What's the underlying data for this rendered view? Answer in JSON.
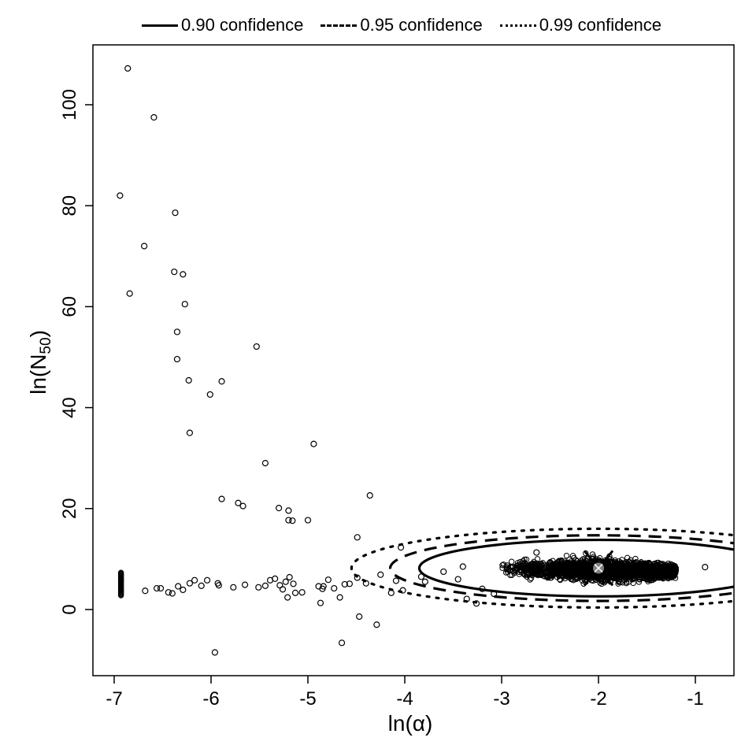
{
  "chart_data": {
    "type": "scatter",
    "title": "",
    "xlabel": "ln(α)",
    "ylabel": "ln(N50)",
    "ylabel_parts": {
      "prefix": "ln(N",
      "subscript": "50",
      "suffix": ")"
    },
    "xlim": [
      -7.2,
      -0.6
    ],
    "ylim": [
      -13,
      111
    ],
    "x_ticks": [
      -7,
      -6,
      -5,
      -4,
      -3,
      -2,
      -1
    ],
    "y_ticks": [
      0,
      20,
      40,
      60,
      80,
      100
    ],
    "grid": false,
    "legend_position": "top-outside",
    "legend": [
      {
        "label": "0.90 confidence",
        "style": "solid"
      },
      {
        "label": "0.95 confidence",
        "style": "dashed"
      },
      {
        "label": "0.99 confidence",
        "style": "dotted"
      }
    ],
    "point_estimate": {
      "x": -2.0,
      "y": 8.2,
      "marker": "circled-x",
      "color": "#808080"
    },
    "confidence_ellipses": [
      {
        "level": 0.9,
        "cx": -2.0,
        "cy": 8.2,
        "rx": 1.85,
        "ry": 5.6,
        "style": "solid"
      },
      {
        "level": 0.95,
        "cx": -2.0,
        "cy": 8.2,
        "rx": 2.15,
        "ry": 6.5,
        "style": "dashed"
      },
      {
        "level": 0.99,
        "cx": -2.0,
        "cy": 8.2,
        "rx": 2.55,
        "ry": 7.8,
        "style": "dotted"
      }
    ],
    "dense_cluster": {
      "x_range": [
        -3.0,
        -1.2
      ],
      "y_center": 7.8,
      "y_spread": 1.5,
      "note": "thousands of overlapping bootstrap points"
    },
    "points": [
      {
        "x": -6.86,
        "y": 107.2
      },
      {
        "x": -6.59,
        "y": 97.5
      },
      {
        "x": -6.94,
        "y": 82.0
      },
      {
        "x": -6.37,
        "y": 78.6
      },
      {
        "x": -6.69,
        "y": 72.0
      },
      {
        "x": -6.84,
        "y": 62.6
      },
      {
        "x": -6.38,
        "y": 66.9
      },
      {
        "x": -6.29,
        "y": 66.4
      },
      {
        "x": -6.27,
        "y": 60.5
      },
      {
        "x": -6.35,
        "y": 55.0
      },
      {
        "x": -6.35,
        "y": 49.6
      },
      {
        "x": -6.23,
        "y": 45.4
      },
      {
        "x": -6.01,
        "y": 42.6
      },
      {
        "x": -5.89,
        "y": 45.2
      },
      {
        "x": -5.53,
        "y": 52.1
      },
      {
        "x": -6.22,
        "y": 35.0
      },
      {
        "x": -5.44,
        "y": 29.0
      },
      {
        "x": -4.94,
        "y": 32.8
      },
      {
        "x": -5.89,
        "y": 21.9
      },
      {
        "x": -5.72,
        "y": 21.1
      },
      {
        "x": -5.67,
        "y": 20.5
      },
      {
        "x": -5.3,
        "y": 20.1
      },
      {
        "x": -5.2,
        "y": 19.6
      },
      {
        "x": -5.2,
        "y": 17.7
      },
      {
        "x": -5.16,
        "y": 17.6
      },
      {
        "x": -5.0,
        "y": 17.7
      },
      {
        "x": -4.36,
        "y": 22.6
      },
      {
        "x": -4.49,
        "y": 14.3
      },
      {
        "x": -6.68,
        "y": 3.7
      },
      {
        "x": -6.56,
        "y": 4.2
      },
      {
        "x": -6.52,
        "y": 4.2
      },
      {
        "x": -6.44,
        "y": 3.4
      },
      {
        "x": -6.4,
        "y": 3.2
      },
      {
        "x": -6.34,
        "y": 4.6
      },
      {
        "x": -6.29,
        "y": 3.9
      },
      {
        "x": -6.22,
        "y": 5.2
      },
      {
        "x": -6.17,
        "y": 5.8
      },
      {
        "x": -6.1,
        "y": 4.7
      },
      {
        "x": -6.04,
        "y": 5.8
      },
      {
        "x": -5.93,
        "y": 5.2
      },
      {
        "x": -5.92,
        "y": 4.8
      },
      {
        "x": -5.77,
        "y": 4.4
      },
      {
        "x": -5.65,
        "y": 4.9
      },
      {
        "x": -5.51,
        "y": 4.4
      },
      {
        "x": -5.44,
        "y": 4.7
      },
      {
        "x": -5.39,
        "y": 5.8
      },
      {
        "x": -5.34,
        "y": 6.1
      },
      {
        "x": -5.29,
        "y": 4.8
      },
      {
        "x": -5.26,
        "y": 4.0
      },
      {
        "x": -5.23,
        "y": 5.5
      },
      {
        "x": -5.19,
        "y": 6.4
      },
      {
        "x": -5.15,
        "y": 5.1
      },
      {
        "x": -5.13,
        "y": 3.3
      },
      {
        "x": -5.06,
        "y": 3.4
      },
      {
        "x": -5.21,
        "y": 2.4
      },
      {
        "x": -4.89,
        "y": 4.6
      },
      {
        "x": -4.84,
        "y": 4.6
      },
      {
        "x": -4.85,
        "y": 4.1
      },
      {
        "x": -4.79,
        "y": 5.9
      },
      {
        "x": -4.73,
        "y": 4.2
      },
      {
        "x": -4.67,
        "y": 2.4
      },
      {
        "x": -4.62,
        "y": 5.0
      },
      {
        "x": -4.57,
        "y": 5.1
      },
      {
        "x": -4.49,
        "y": 6.3
      },
      {
        "x": -4.4,
        "y": 5.2
      },
      {
        "x": -4.25,
        "y": 6.9
      },
      {
        "x": -4.14,
        "y": 3.3
      },
      {
        "x": -4.09,
        "y": 5.7
      },
      {
        "x": -4.04,
        "y": 12.3
      },
      {
        "x": -4.02,
        "y": 3.8
      },
      {
        "x": -4.87,
        "y": 1.3
      },
      {
        "x": -4.47,
        "y": -1.4
      },
      {
        "x": -4.29,
        "y": -3.0
      },
      {
        "x": -4.65,
        "y": -6.6
      },
      {
        "x": -5.96,
        "y": -8.5
      },
      {
        "x": -3.83,
        "y": 6.5
      },
      {
        "x": -3.79,
        "y": 5.5
      },
      {
        "x": -3.6,
        "y": 7.5
      },
      {
        "x": -3.45,
        "y": 6.0
      },
      {
        "x": -3.36,
        "y": 2.1
      },
      {
        "x": -3.26,
        "y": 1.2
      },
      {
        "x": -3.4,
        "y": 8.5
      },
      {
        "x": -3.2,
        "y": 4.1
      },
      {
        "x": -3.08,
        "y": 3.1
      },
      {
        "x": -2.64,
        "y": 11.3
      },
      {
        "x": -0.9,
        "y": 8.4
      }
    ],
    "stacked_column": {
      "x": -6.93,
      "y_range": [
        2.8,
        7.4
      ],
      "note": "many points at lower bound of ln(α)"
    }
  }
}
